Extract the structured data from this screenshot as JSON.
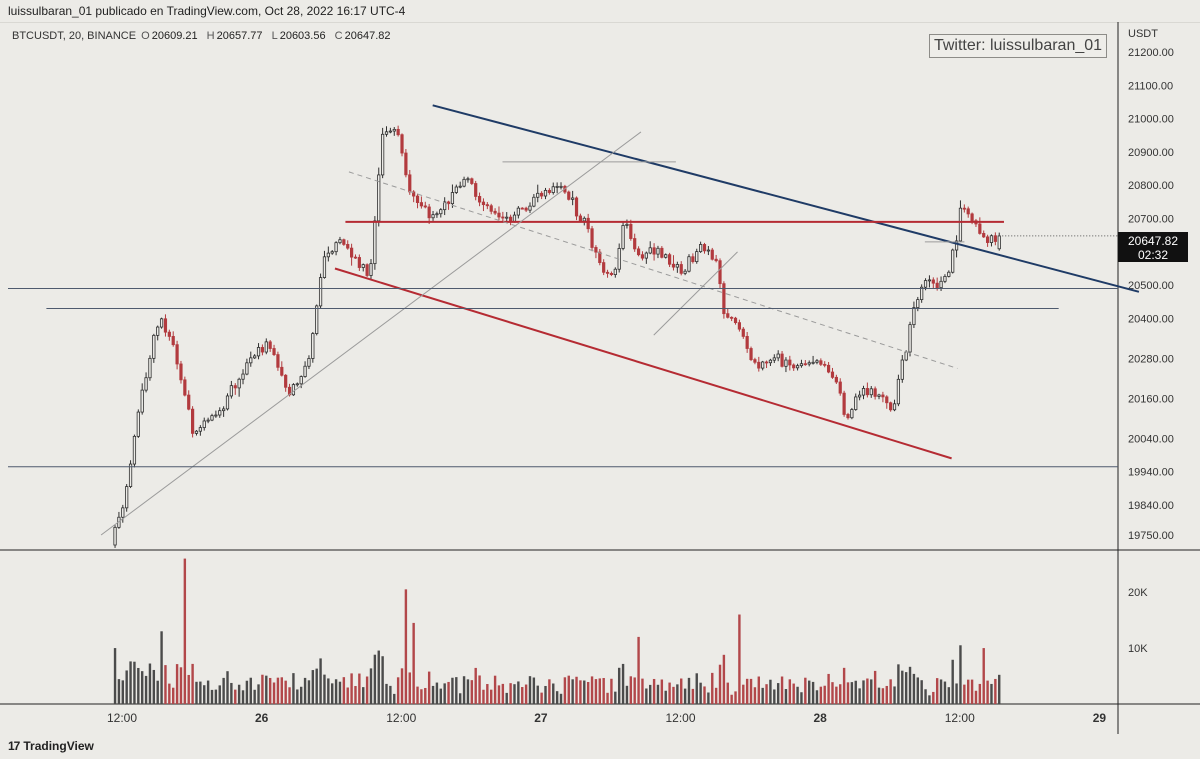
{
  "header": {
    "publish_line": "luissulbaran_01 publicado en TradingView.com, Oct 28, 2022 16:17 UTC-4"
  },
  "legend": {
    "symbol": "BTCUSDT, 20, BINANCE",
    "open_key": "O",
    "open": "20609.21",
    "high_key": "H",
    "high": "20657.77",
    "low_key": "L",
    "low": "20603.56",
    "close_key": "C",
    "close": "20647.82"
  },
  "watermark": "Twitter: luissulbaran_01",
  "price_axis": {
    "unit": "USDT",
    "last_price": "20647.82",
    "countdown": "02:32"
  },
  "footer": {
    "brand": "TradingView",
    "logo_glyph": "17"
  },
  "colors": {
    "bg": "#ecebe7",
    "bull": "#2f2f2f",
    "bear": "#b23a3e",
    "vol_bull": "#4b4b4b",
    "vol_bear": "#b2474a",
    "blue_line": "#1f3b66",
    "red_line": "#b52b33",
    "grey_line": "#9b9b9b"
  },
  "chart_data": {
    "type": "candlestick",
    "symbol": "BTCUSDT",
    "interval": "20",
    "exchange": "BINANCE",
    "price_ticks": [
      21200,
      21100,
      21000,
      20900,
      20800,
      20700,
      20500,
      20400,
      20280,
      20160,
      20040,
      19940,
      19840,
      19750
    ],
    "volume_ticks": [
      "20K",
      "10K"
    ],
    "time_ticks": [
      {
        "label": "12:00",
        "hour": 12,
        "bold": false
      },
      {
        "label": "26",
        "hour": 24,
        "bold": true
      },
      {
        "label": "12:00",
        "hour": 36,
        "bold": false
      },
      {
        "label": "27",
        "hour": 48,
        "bold": true
      },
      {
        "label": "12:00",
        "hour": 60,
        "bold": false
      },
      {
        "label": "28",
        "hour": 72,
        "bold": true
      },
      {
        "label": "12:00",
        "hour": 84,
        "bold": false
      },
      {
        "label": "29",
        "hour": 96,
        "bold": true
      }
    ],
    "price_range": [
      19705,
      21290
    ],
    "volume_max": 27000,
    "time_range_hours": [
      2.2,
      97.6
    ],
    "candles_start_hour": 11.4,
    "bar_hours": 0.3333,
    "path_anchors": [
      [
        11.4,
        19720
      ],
      [
        12.5,
        19850
      ],
      [
        13.5,
        20060
      ],
      [
        14.5,
        20250
      ],
      [
        15.6,
        20420
      ],
      [
        16.7,
        20330
      ],
      [
        18.5,
        20050
      ],
      [
        20.5,
        20120
      ],
      [
        22.5,
        20230
      ],
      [
        24.8,
        20320
      ],
      [
        26.8,
        20170
      ],
      [
        28.5,
        20290
      ],
      [
        29.6,
        20580
      ],
      [
        31.2,
        20640
      ],
      [
        33.6,
        20520
      ],
      [
        34.8,
        20980
      ],
      [
        36.0,
        20960
      ],
      [
        37.0,
        20780
      ],
      [
        39.0,
        20700
      ],
      [
        40.5,
        20760
      ],
      [
        42.0,
        20810
      ],
      [
        43.5,
        20740
      ],
      [
        45.0,
        20690
      ],
      [
        47.5,
        20760
      ],
      [
        50.0,
        20800
      ],
      [
        52.0,
        20690
      ],
      [
        53.5,
        20560
      ],
      [
        54.5,
        20510
      ],
      [
        55.5,
        20700
      ],
      [
        56.5,
        20590
      ],
      [
        58.5,
        20600
      ],
      [
        60.5,
        20540
      ],
      [
        62.5,
        20630
      ],
      [
        63.5,
        20560
      ],
      [
        64.0,
        20420
      ],
      [
        65.5,
        20370
      ],
      [
        66.5,
        20250
      ],
      [
        68.5,
        20280
      ],
      [
        70.0,
        20240
      ],
      [
        72.0,
        20270
      ],
      [
        73.5,
        20230
      ],
      [
        74.5,
        20090
      ],
      [
        75.5,
        20170
      ],
      [
        77.5,
        20160
      ],
      [
        78.5,
        20120
      ],
      [
        79.5,
        20290
      ],
      [
        80.5,
        20450
      ],
      [
        81.5,
        20520
      ],
      [
        82.5,
        20500
      ],
      [
        83.5,
        20540
      ],
      [
        84.5,
        20750
      ],
      [
        85.5,
        20690
      ],
      [
        86.5,
        20630
      ],
      [
        87.7,
        20648
      ]
    ],
    "drawings": [
      {
        "kind": "line",
        "name": "descending-channel-upper",
        "color": "blue",
        "p1": [
          38.7,
          21040
        ],
        "p2": [
          99.4,
          20480
        ]
      },
      {
        "kind": "line",
        "name": "descending-channel-lower",
        "color": "red",
        "p1": [
          30.3,
          20550
        ],
        "p2": [
          83.3,
          19980
        ]
      },
      {
        "kind": "line",
        "name": "horizontal-resistance",
        "color": "red",
        "p1": [
          31.2,
          20690
        ],
        "p2": [
          87.8,
          20690
        ]
      },
      {
        "kind": "line",
        "name": "ascending-trendline",
        "color": "grey",
        "p1": [
          10.2,
          19750
        ],
        "p2": [
          56.6,
          20960
        ]
      },
      {
        "kind": "line",
        "name": "pullback-trendline",
        "color": "grey",
        "p1": [
          57.7,
          20350
        ],
        "p2": [
          64.9,
          20600
        ]
      },
      {
        "kind": "dashed",
        "name": "channel-midline",
        "color": "grey",
        "p1": [
          31.5,
          20840
        ],
        "p2": [
          83.8,
          20250
        ]
      },
      {
        "kind": "hline",
        "name": "range-top-marker",
        "color": "grey",
        "p1": [
          44.7,
          20870
        ],
        "p2": [
          59.6,
          20870
        ]
      },
      {
        "kind": "hline",
        "name": "breakout-marker",
        "color": "grey",
        "p1": [
          81.0,
          20630
        ],
        "p2": [
          84.4,
          20630
        ]
      },
      {
        "kind": "hline",
        "name": "support-line-1",
        "color": "slate",
        "p1": [
          2.2,
          20490
        ],
        "p2": [
          97.6,
          20490
        ]
      },
      {
        "kind": "hline",
        "name": "support-line-2",
        "color": "slate",
        "p1": [
          5.5,
          20430
        ],
        "p2": [
          92.5,
          20430
        ]
      },
      {
        "kind": "hline",
        "name": "support-line-3",
        "color": "slate",
        "p1": [
          2.2,
          19955
        ],
        "p2": [
          97.6,
          19955
        ]
      }
    ]
  }
}
